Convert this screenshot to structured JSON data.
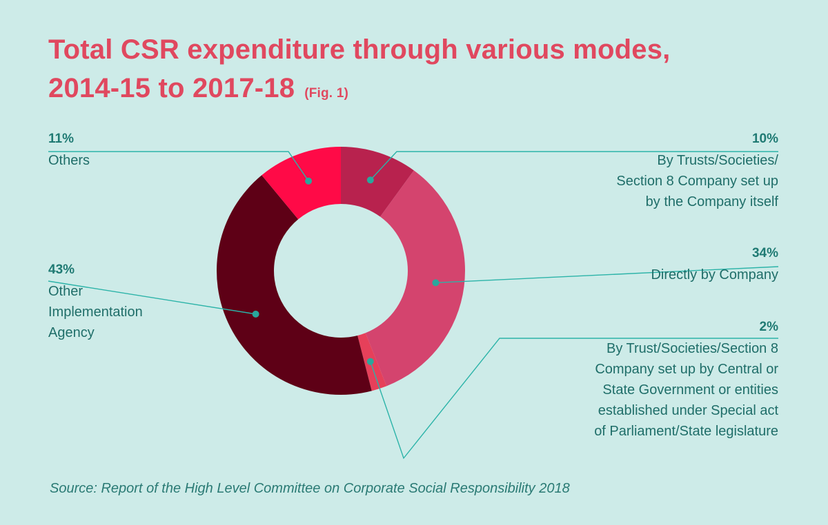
{
  "title": {
    "line1": "Total CSR expenditure through various modes,",
    "line2": "2014-15 to 2017-18",
    "fig": "(Fig. 1)"
  },
  "source": "Source: Report of the High Level Committee on Corporate Social Responsibility 2018",
  "chart_data": {
    "type": "pie",
    "variant": "donut",
    "title": "Total CSR expenditure through various modes, 2014-15 to 2017-18",
    "slices": [
      {
        "pct_label": "10%",
        "value": 10,
        "label": "By Trusts/Societies/ Section 8 Company set up by the Company itself",
        "lines": [
          "By Trusts/Societies/",
          "Section 8 Company set up",
          "by the Company itself"
        ],
        "color": "#b8224e"
      },
      {
        "pct_label": "34%",
        "value": 34,
        "label": "Directly by Company",
        "lines": [
          "Directly by Company"
        ],
        "color": "#d4446e"
      },
      {
        "pct_label": "2%",
        "value": 2,
        "label": "By Trust/Societies/Section 8 Company set up by Central or State Government or entities established under Special act of Parliament/State legislature",
        "lines": [
          "By Trust/Societies/Section 8",
          "Company set up by Central or",
          "State Government or entities",
          "established under Special act",
          "of Parliament/State legislature"
        ],
        "color": "#e6405a"
      },
      {
        "pct_label": "43%",
        "value": 43,
        "label": "Other Implementation Agency",
        "lines": [
          "Other",
          "Implementation",
          "Agency"
        ],
        "color": "#5e0016"
      },
      {
        "pct_label": "11%",
        "value": 11,
        "label": "Others",
        "lines": [
          "Others"
        ],
        "color": "#ff0a47"
      }
    ],
    "colors": {
      "leader": "#2bb3a8",
      "dot": "#2aa79c"
    }
  }
}
